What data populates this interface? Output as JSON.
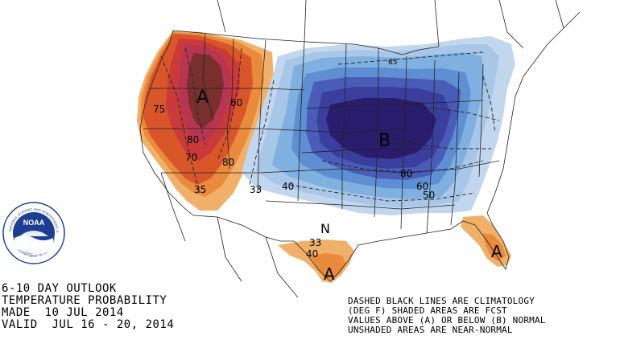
{
  "title": {
    "line1": "6-10 DAY OUTLOOK",
    "line2": "TEMPERATURE PROBABILITY",
    "line3": "MADE  10 JUL 2014",
    "line4": "VALID  JUL 16 - 20, 2014"
  },
  "legend": {
    "line1": "DASHED BLACK LINES ARE CLIMATOLOGY",
    "line2": "(DEG F) SHADED AREAS ARE FCST",
    "line3": "VALUES ABOVE (A) OR BELOW (B) NORMAL",
    "line4": "UNSHADED AREAS ARE NEAR-NORMAL"
  },
  "logo": {
    "text": "NOAA",
    "ring_text_top": "NATIONAL OCEANIC AND ATMOSPHERIC ADMINISTRATION",
    "ring_text_bottom": "U.S. DEPARTMENT OF COMMERCE"
  },
  "labels": {
    "above_west": "A",
    "below_central": "B",
    "above_texas": "A",
    "above_florida": "A",
    "near_normal": "N",
    "prob_60_west": "60",
    "prob_75": "75",
    "prob_80_west": "80",
    "prob_70_west": "70",
    "prob_80_mid": "80",
    "prob_35": "35",
    "prob_33": "33",
    "prob_40_plains": "40",
    "prob_80_east": "80",
    "prob_60_east": "60",
    "prob_50_east": "50",
    "prob_33_texas": "33",
    "prob_40_texas": "40",
    "prob_65_great_lakes": "65"
  },
  "colors": {
    "above_dark": "#7a2f2f",
    "above_red": "#c93a3a",
    "above_orange_red": "#d9562a",
    "above_orange": "#e98a3c",
    "above_light": "#f1b06a",
    "below_light": "#c2d6ee",
    "below_medium": "#7fb0e0",
    "below_blue": "#4a7ac8",
    "below_dark": "#3a3f9e",
    "below_darkest": "#2a1d6e"
  }
}
